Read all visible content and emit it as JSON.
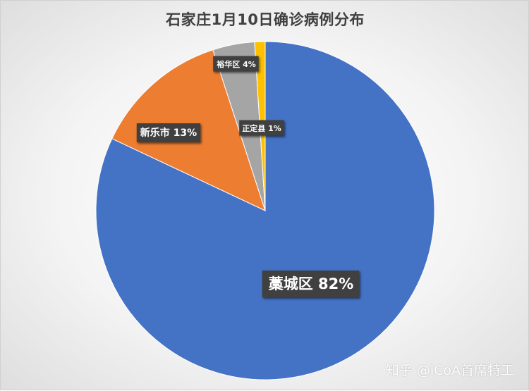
{
  "chart_data": {
    "type": "pie",
    "title": "石家庄1月10日确诊病例分布",
    "slices": [
      {
        "label": "藁城区",
        "value": 82,
        "color": "#4472C4"
      },
      {
        "label": "新乐市",
        "value": 13,
        "color": "#ED7D31"
      },
      {
        "label": "裕华区",
        "value": 4,
        "color": "#A5A5A5"
      },
      {
        "label": "正定县",
        "value": 1,
        "color": "#FFC000"
      }
    ]
  },
  "watermark": "知乎 @iCoA首席特工"
}
